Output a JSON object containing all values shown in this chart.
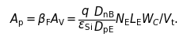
{
  "formula": "$A_{\\mathrm{p}} = \\beta_{\\mathrm{F}}A_{\\mathrm{V}} = \\dfrac{q}{\\varepsilon_{\\mathrm{Si}}}\\dfrac{D_{\\mathrm{nB}}}{D_{\\mathrm{pE}}}N_{\\mathrm{E}}L_{\\mathrm{E}}W_{C}/V_{\\mathrm{t}}.$",
  "fontsize": 10.5,
  "background_color": "#ffffff",
  "text_color": "#000000",
  "fig_width": 2.36,
  "fig_height": 0.52,
  "dpi": 100
}
